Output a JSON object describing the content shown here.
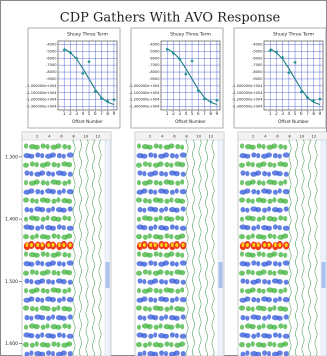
{
  "title": "CDP Gathers With AVO Response",
  "chart_data": [
    {
      "type": "scatter",
      "title": "Shuey Three Term",
      "x_label": "Offset Number",
      "x": [
        1,
        2,
        3,
        4,
        5,
        6,
        7,
        8,
        9
      ],
      "xlim": [
        0,
        9.5
      ],
      "xticks": [
        1,
        2,
        3,
        4,
        5,
        6,
        7,
        8,
        9
      ],
      "ylim": [
        -13500,
        -3500
      ],
      "yticks": [
        -4000,
        -5000,
        -6000,
        -7000,
        -8000,
        -9000,
        {
          "value": -10000,
          "label": "-1.000000e+004"
        },
        {
          "value": -11000,
          "label": "-1.100000e+004"
        },
        {
          "value": -12000,
          "label": "-1.200000e+004"
        },
        {
          "value": -13000,
          "label": "-1.300000e+004"
        }
      ],
      "points": {
        "color": "#1f8f8f",
        "values": [
          -4800,
          -5200,
          -6000,
          -8200,
          -6500,
          -10800,
          -11800,
          -12200,
          -12000
        ]
      },
      "fit": {
        "color": "#1f7f86",
        "values": [
          -4600,
          -5200,
          -6100,
          -7500,
          -9000,
          -10500,
          -11700,
          -12400,
          -12700
        ]
      },
      "grid": true
    },
    {
      "type": "scatter",
      "title": "Shuey Three Term",
      "x_label": "Offset Number",
      "x": [
        1,
        2,
        3,
        4,
        5,
        6,
        7,
        8,
        9
      ],
      "xlim": [
        0,
        9.5
      ],
      "xticks": [
        1,
        2,
        3,
        4,
        5,
        6,
        7,
        8,
        9
      ],
      "ylim": [
        -13500,
        -3500
      ],
      "yticks": [
        -4000,
        -5000,
        -6000,
        -7000,
        -8000,
        -9000,
        {
          "value": -10000,
          "label": "-1.000000e+004"
        },
        {
          "value": -11000,
          "label": "-1.100000e+004"
        },
        {
          "value": -12000,
          "label": "-1.200000e+004"
        },
        {
          "value": -13000,
          "label": "-1.300000e+004"
        }
      ],
      "points": {
        "color": "#1f8f8f",
        "values": [
          -4700,
          -5300,
          -6100,
          -8300,
          -6400,
          -10700,
          -11900,
          -12300,
          -12100
        ]
      },
      "fit": {
        "color": "#1f7f86",
        "values": [
          -4600,
          -5200,
          -6100,
          -7500,
          -9000,
          -10500,
          -11700,
          -12400,
          -12700
        ]
      },
      "grid": true
    },
    {
      "type": "scatter",
      "title": "Shuey Three Term",
      "x_label": "Offset Number",
      "x": [
        1,
        2,
        3,
        4,
        5,
        6,
        7,
        8,
        9
      ],
      "xlim": [
        0,
        9.5
      ],
      "xticks": [
        1,
        2,
        3,
        4,
        5,
        6,
        7,
        8,
        9
      ],
      "ylim": [
        -13500,
        -3500
      ],
      "yticks": [
        -4000,
        -5000,
        -6000,
        -7000,
        -8000,
        -9000,
        {
          "value": -10000,
          "label": "-1.000000e+004"
        },
        {
          "value": -11000,
          "label": "-1.100000e+004"
        },
        {
          "value": -12000,
          "label": "-1.200000e+004"
        },
        {
          "value": -13000,
          "label": "-1.300000e+004"
        }
      ],
      "points": {
        "color": "#1f8f8f",
        "values": [
          -4900,
          -5100,
          -5900,
          -8100,
          -6600,
          -10900,
          -11700,
          -12100,
          -11900
        ]
      },
      "fit": {
        "color": "#1f7f86",
        "values": [
          -4600,
          -5200,
          -6100,
          -7500,
          -9000,
          -10500,
          -11700,
          -12400,
          -12700
        ]
      },
      "grid": true
    }
  ],
  "gathers": {
    "ylim": [
      1.26,
      1.62
    ],
    "time_ticks": [
      {
        "value": 1.3,
        "label": "1.300"
      },
      {
        "value": 1.4,
        "label": "1.400"
      },
      {
        "value": 1.5,
        "label": "1.500"
      },
      {
        "value": 1.6,
        "label": "1.600"
      }
    ],
    "trace_ticks": [
      2,
      4,
      6,
      8,
      10,
      12
    ]
  }
}
